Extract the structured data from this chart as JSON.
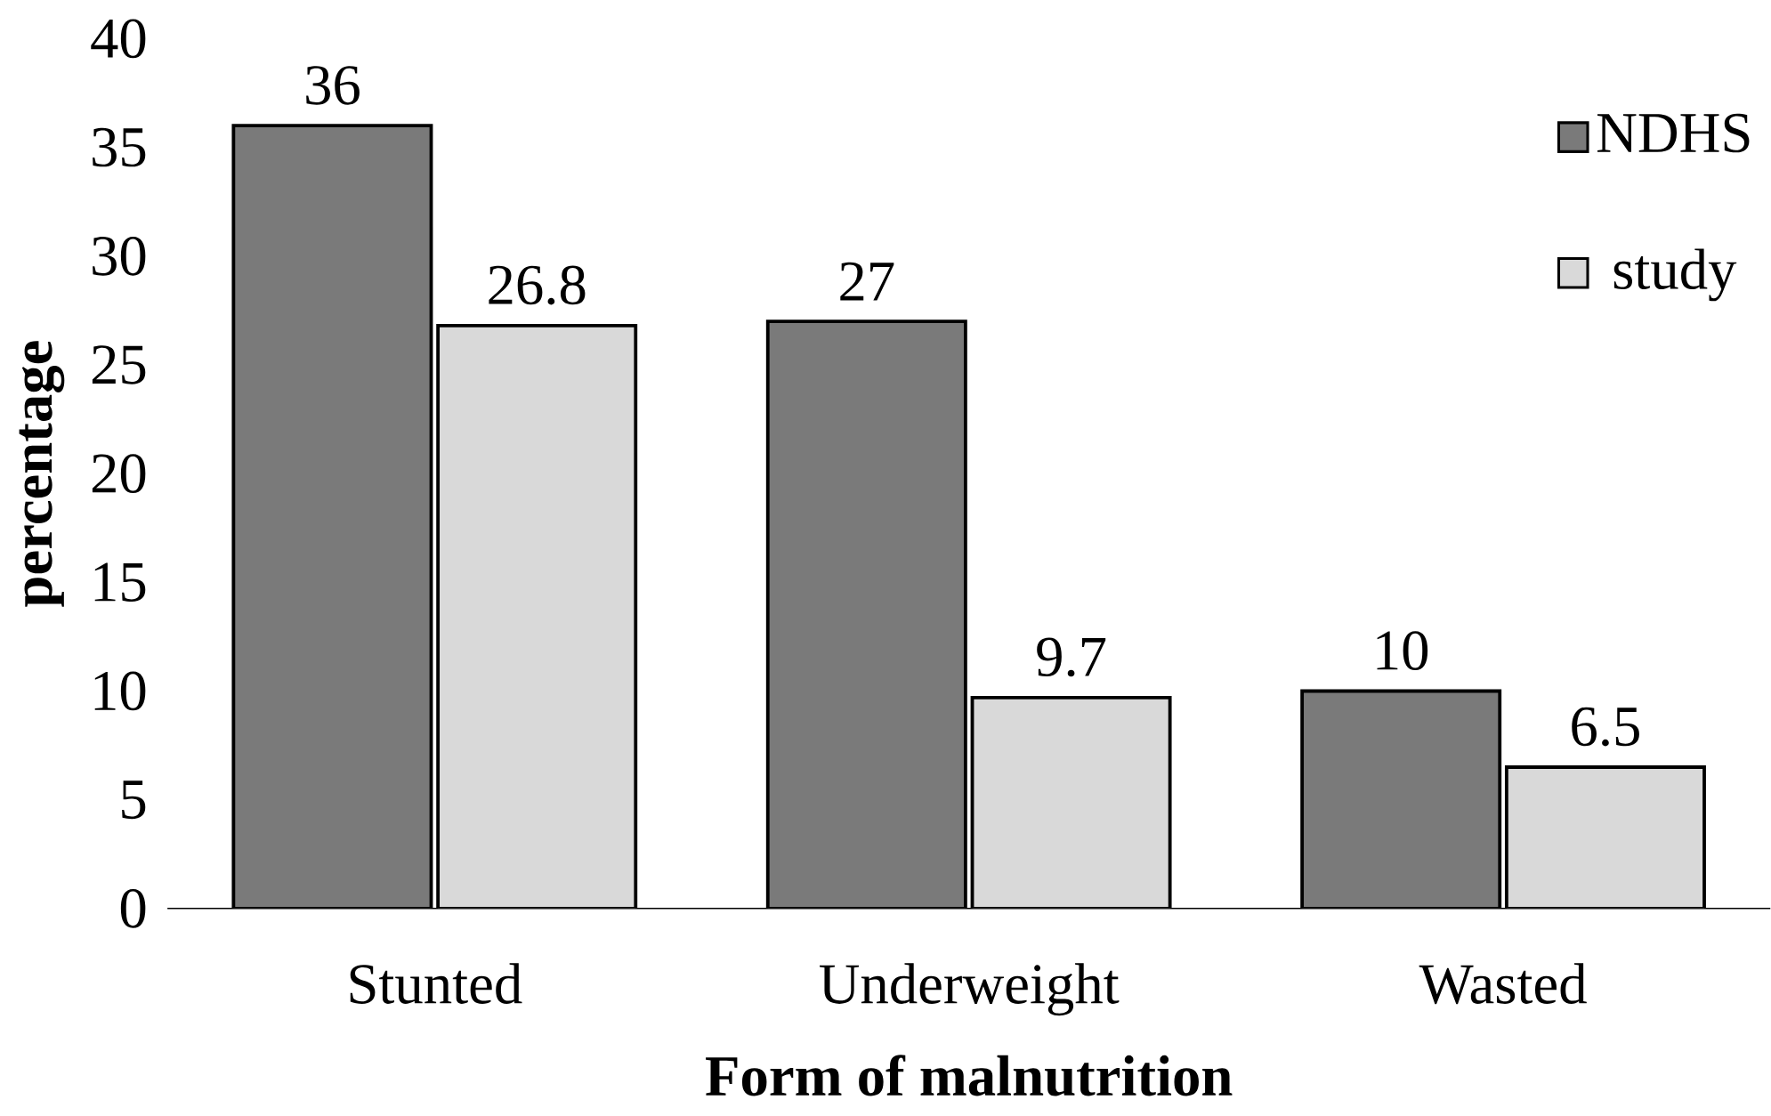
{
  "chart_data": {
    "type": "bar",
    "xlabel": "Form of malnutrition",
    "ylabel": "percentage",
    "categories": [
      "Stunted",
      "Underweight",
      "Wasted"
    ],
    "series": [
      {
        "name": "NDHS",
        "color": "#7a7a7a",
        "values": [
          36,
          27,
          10
        ]
      },
      {
        "name": "study",
        "color": "#d9d9d9",
        "values": [
          26.8,
          9.7,
          6.5
        ]
      }
    ],
    "ylim": [
      0,
      40
    ],
    "yticks": [
      0,
      5,
      10,
      15,
      20,
      25,
      30,
      35,
      40
    ],
    "data_labels": true,
    "legend": "top right",
    "grid": false
  }
}
